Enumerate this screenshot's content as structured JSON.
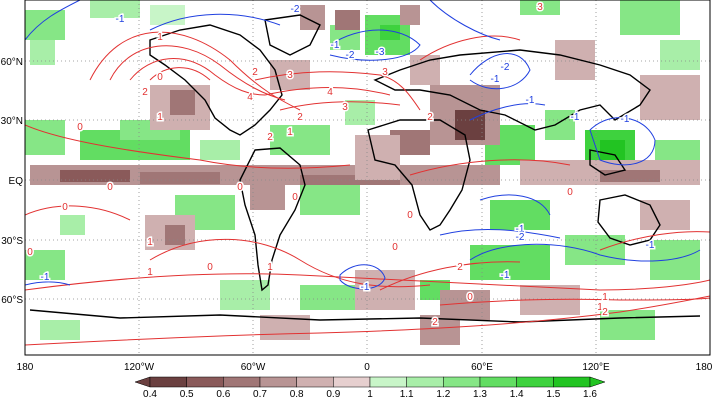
{
  "lat_labels": [
    "60°N",
    "30°N",
    "EQ",
    "30°S",
    "60°S"
  ],
  "lon_labels": [
    "180",
    "120°W",
    "60°W",
    "0",
    "60°E",
    "120°E",
    "180"
  ],
  "colorbar": {
    "ticks": [
      "0.4",
      "0.5",
      "0.6",
      "0.7",
      "0.8",
      "0.9",
      "1",
      "1.1",
      "1.2",
      "1.3",
      "1.4",
      "1.5",
      "1.6"
    ],
    "colors": [
      "#6b4040",
      "#8a5a5a",
      "#a07676",
      "#b89494",
      "#cfb0b0",
      "#e6cfcf",
      "#c8f5c8",
      "#a8eea8",
      "#86e686",
      "#62dd62",
      "#3ed23e",
      "#22c422"
    ]
  },
  "contour_colors": {
    "positive": "#e23232",
    "negative": "#2040e0"
  },
  "contour_labels": [
    {
      "text": "-1",
      "c": "neg"
    },
    {
      "text": "-2",
      "c": "neg"
    },
    {
      "text": "-1",
      "c": "neg"
    },
    {
      "text": "-2",
      "c": "neg"
    },
    {
      "text": "-3",
      "c": "neg"
    },
    {
      "text": "-2",
      "c": "neg"
    },
    {
      "text": "-1",
      "c": "neg"
    },
    {
      "text": "-1",
      "c": "neg"
    },
    {
      "text": "-1",
      "c": "neg"
    },
    {
      "text": "-1",
      "c": "neg"
    },
    {
      "text": "-1",
      "c": "neg"
    },
    {
      "text": "-2",
      "c": "neg"
    },
    {
      "text": "-1",
      "c": "neg"
    },
    {
      "text": "-1",
      "c": "neg"
    },
    {
      "text": "-1",
      "c": "neg"
    },
    {
      "text": "-1",
      "c": "neg"
    },
    {
      "text": "1",
      "c": "pos"
    },
    {
      "text": "2",
      "c": "pos"
    },
    {
      "text": "3",
      "c": "pos"
    },
    {
      "text": "4",
      "c": "pos"
    },
    {
      "text": "2",
      "c": "pos"
    },
    {
      "text": "1",
      "c": "pos"
    },
    {
      "text": "0",
      "c": "pos"
    },
    {
      "text": "3",
      "c": "pos"
    },
    {
      "text": "4",
      "c": "pos"
    },
    {
      "text": "3",
      "c": "pos"
    },
    {
      "text": "2",
      "c": "pos"
    },
    {
      "text": "2",
      "c": "pos"
    },
    {
      "text": "1",
      "c": "pos"
    },
    {
      "text": "0",
      "c": "pos"
    },
    {
      "text": "0",
      "c": "pos"
    },
    {
      "text": "0",
      "c": "pos"
    },
    {
      "text": "0",
      "c": "pos"
    },
    {
      "text": "0",
      "c": "pos"
    },
    {
      "text": "1",
      "c": "pos"
    },
    {
      "text": "1",
      "c": "pos"
    },
    {
      "text": "1",
      "c": "pos"
    },
    {
      "text": "0",
      "c": "pos"
    },
    {
      "text": "0",
      "c": "pos"
    },
    {
      "text": "1",
      "c": "pos"
    },
    {
      "text": "1",
      "c": "pos"
    },
    {
      "text": "2",
      "c": "pos"
    },
    {
      "text": "2",
      "c": "pos"
    },
    {
      "text": "0",
      "c": "pos"
    },
    {
      "text": "2",
      "c": "pos"
    },
    {
      "text": "0",
      "c": "pos"
    },
    {
      "text": "0",
      "c": "pos"
    },
    {
      "text": "3",
      "c": "pos"
    },
    {
      "text": "2",
      "c": "pos"
    },
    {
      "text": "0",
      "c": "pos"
    }
  ]
}
